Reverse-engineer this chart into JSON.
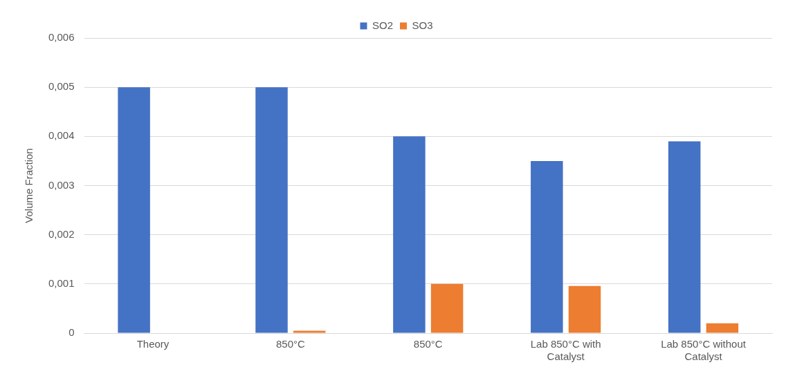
{
  "chart_data": {
    "type": "bar",
    "ylabel": "Volume Fraction",
    "categories": [
      "Theory",
      "850°C",
      "850°C",
      "Lab 850°C with Catalyst",
      "Lab 850°C without Catalyst"
    ],
    "series": [
      {
        "name": "SO2",
        "color": "#4472c4",
        "values": [
          0.005,
          0.005,
          0.004,
          0.0035,
          0.0039
        ]
      },
      {
        "name": "SO3",
        "color": "#ed7d31",
        "values": [
          0,
          5e-05,
          0.001,
          0.00096,
          0.0002
        ]
      }
    ],
    "ylim": [
      0,
      0.006
    ],
    "yticks": [
      {
        "value": 0,
        "label": "0"
      },
      {
        "value": 0.001,
        "label": "0,001"
      },
      {
        "value": 0.002,
        "label": "0,002"
      },
      {
        "value": 0.003,
        "label": "0,003"
      },
      {
        "value": 0.004,
        "label": "0,004"
      },
      {
        "value": 0.005,
        "label": "0,005"
      },
      {
        "value": 0.006,
        "label": "0,006"
      }
    ],
    "grid": "y",
    "legend": "top"
  }
}
